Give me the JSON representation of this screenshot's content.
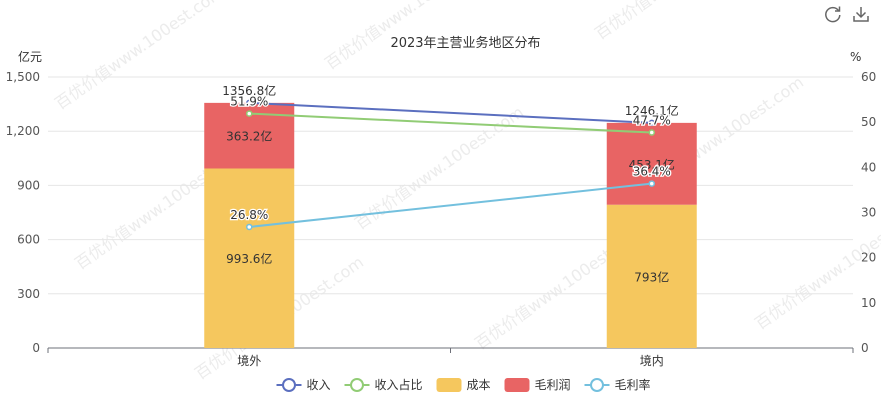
{
  "toolbar": {
    "refresh_icon": "refresh-icon",
    "download_icon": "download-icon"
  },
  "watermark": "百优价值www.100est.com",
  "chart_data": {
    "type": "bar",
    "title": "2023年主营业务地区分布",
    "left_axis": {
      "unit": "亿元",
      "min": 0,
      "max": 1500,
      "ticks": [
        "0",
        "300",
        "600",
        "900",
        "1,200",
        "1,500"
      ],
      "tick_values": [
        0,
        300,
        600,
        900,
        1200,
        1500
      ]
    },
    "right_axis": {
      "unit": "%",
      "min": 0,
      "max": 60,
      "ticks": [
        "0",
        "10",
        "20",
        "30",
        "40",
        "50",
        "60"
      ],
      "tick_values": [
        0,
        10,
        20,
        30,
        40,
        50,
        60
      ]
    },
    "categories": [
      "境外",
      "境内"
    ],
    "bar_series": [
      {
        "name": "成本",
        "color": "#f5c75e",
        "values": [
          993.6,
          793
        ],
        "labels": [
          "993.6亿",
          "793亿"
        ]
      },
      {
        "name": "毛利润",
        "color": "#e86464",
        "values": [
          363.2,
          453.1
        ],
        "labels": [
          "363.2亿",
          "453.1亿"
        ]
      }
    ],
    "line_series": [
      {
        "name": "收入",
        "color": "#5b6fbf",
        "axis": "left",
        "values": [
          1356.8,
          1246.1
        ],
        "labels": [
          "1356.8亿",
          "1246.1亿"
        ]
      },
      {
        "name": "收入占比",
        "color": "#91cc75",
        "axis": "right",
        "values": [
          51.9,
          47.7
        ],
        "labels": [
          "51.9%",
          "47.7%"
        ]
      },
      {
        "name": "毛利率",
        "color": "#73c0de",
        "axis": "right",
        "values": [
          26.8,
          36.4
        ],
        "labels": [
          "26.8%",
          "36.4%"
        ]
      }
    ],
    "legend": {
      "position": "bottom",
      "items": [
        {
          "name": "收入",
          "kind": "line",
          "color": "#5b6fbf"
        },
        {
          "name": "收入占比",
          "kind": "line",
          "color": "#91cc75"
        },
        {
          "name": "成本",
          "kind": "bar",
          "color": "#f5c75e"
        },
        {
          "name": "毛利润",
          "kind": "bar",
          "color": "#e86464"
        },
        {
          "name": "毛利率",
          "kind": "line",
          "color": "#73c0de"
        }
      ]
    },
    "grid": true
  }
}
